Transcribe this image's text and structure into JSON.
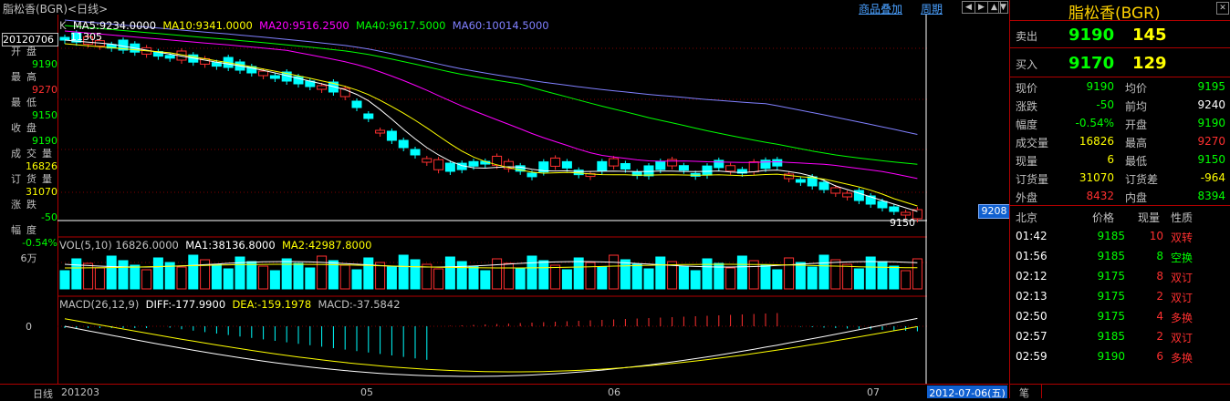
{
  "window": {
    "title": "脂松香(BGR)<日线>",
    "links": {
      "overlay": "商品叠加",
      "period": "周期"
    },
    "nav_buttons": [
      "◀",
      "▶",
      "▲",
      "▼"
    ]
  },
  "left_panel": {
    "date": "20120706",
    "items": [
      {
        "label": "开盘",
        "value": "9190",
        "color": "#00ff00"
      },
      {
        "label": "最高",
        "value": "9270",
        "color": "#ff3030"
      },
      {
        "label": "最低",
        "value": "9150",
        "color": "#00ff00"
      },
      {
        "label": "收盘",
        "value": "9190",
        "color": "#00ff00"
      },
      {
        "label": "成交量",
        "value": "16826",
        "color": "#ffff00"
      },
      {
        "label": "订货量",
        "value": "31070",
        "color": "#ffff00"
      },
      {
        "label": "涨跌",
        "value": "-50",
        "color": "#00ff00"
      },
      {
        "label": "幅度",
        "value": "-0.54%",
        "color": "#00ff00"
      }
    ],
    "vol_unit": "6万",
    "macd_zero": "0"
  },
  "main_chart": {
    "legend": [
      {
        "text": "K",
        "color": "#c0c0c0"
      },
      {
        "text": "MA5:9234.0000",
        "color": "#ffffff"
      },
      {
        "text": "MA10:9341.0000",
        "color": "#ffff00"
      },
      {
        "text": "MA20:9516.2500",
        "color": "#ff00ff"
      },
      {
        "text": "MA40:9617.5000",
        "color": "#00ff00"
      },
      {
        "text": "MA60:10014.5000",
        "color": "#8080ff"
      }
    ],
    "high_label": "11305",
    "low_label": "9150",
    "price_tag": "9208"
  },
  "volume_chart": {
    "legend": [
      {
        "text": "VOL(5,10) 16826.0000",
        "color": "#c0c0c0"
      },
      {
        "text": "MA1:38136.8000",
        "color": "#ffffff"
      },
      {
        "text": "MA2:42987.8000",
        "color": "#ffff00"
      }
    ]
  },
  "macd_chart": {
    "legend": [
      {
        "text": "MACD(26,12,9)",
        "color": "#c0c0c0"
      },
      {
        "text": "DIFF:-177.9900",
        "color": "#ffffff"
      },
      {
        "text": "DEA:-159.1978",
        "color": "#ffff00"
      },
      {
        "text": "MACD:-37.5842",
        "color": "#c0c0c0"
      }
    ]
  },
  "bottom_bar": {
    "period": "日线",
    "ticks": [
      "201203",
      "05",
      "06",
      "07"
    ],
    "cursor_date": "2012-07-06(五)"
  },
  "right_panel": {
    "title": "脂松香(BGR)",
    "sell": {
      "label": "卖出",
      "price": "9190",
      "volume": "145"
    },
    "buy": {
      "label": "买入",
      "price": "9170",
      "volume": "129"
    },
    "quotes": [
      {
        "l1": "现价",
        "v1": "9190",
        "c1": "#00ff00",
        "l2": "均价",
        "v2": "9195",
        "c2": "#00ff00"
      },
      {
        "l1": "涨跌",
        "v1": "-50",
        "c1": "#00ff00",
        "l2": "前均",
        "v2": "9240",
        "c2": "#ffffff"
      },
      {
        "l1": "幅度",
        "v1": "-0.54%",
        "c1": "#00ff00",
        "l2": "开盘",
        "v2": "9190",
        "c2": "#00ff00"
      },
      {
        "l1": "成交量",
        "v1": "16826",
        "c1": "#ffff00",
        "l2": "最高",
        "v2": "9270",
        "c2": "#ff3030"
      },
      {
        "l1": "现量",
        "v1": "6",
        "c1": "#ffff00",
        "l2": "最低",
        "v2": "9150",
        "c2": "#00ff00"
      },
      {
        "l1": "订货量",
        "v1": "31070",
        "c1": "#ffff00",
        "l2": "订货差",
        "v2": "-964",
        "c2": "#ffff00"
      },
      {
        "l1": "外盘",
        "v1": "8432",
        "c1": "#ff3030",
        "l2": "内盘",
        "v2": "8394",
        "c2": "#00ff00"
      }
    ],
    "ticks_header": {
      "time": "北京",
      "price": "价格",
      "vol": "现量",
      "nature": "性质"
    },
    "ticks": [
      {
        "time": "01:42",
        "price": "9185",
        "vol": "10",
        "nature": "双转",
        "vcolor": "#ff3030"
      },
      {
        "time": "01:56",
        "price": "9185",
        "vol": "8",
        "nature": "空换",
        "vcolor": "#00ff00"
      },
      {
        "time": "02:12",
        "price": "9175",
        "vol": "8",
        "nature": "双订",
        "vcolor": "#ff3030"
      },
      {
        "time": "02:13",
        "price": "9175",
        "vol": "2",
        "nature": "双订",
        "vcolor": "#ff3030"
      },
      {
        "time": "02:50",
        "price": "9175",
        "vol": "4",
        "nature": "多换",
        "vcolor": "#ff3030"
      },
      {
        "time": "02:57",
        "price": "9185",
        "vol": "2",
        "nature": "双订",
        "vcolor": "#ff3030"
      },
      {
        "time": "02:59",
        "price": "9190",
        "vol": "6",
        "nature": "多换",
        "vcolor": "#ff3030"
      }
    ],
    "bottom_label": "笔"
  }
}
